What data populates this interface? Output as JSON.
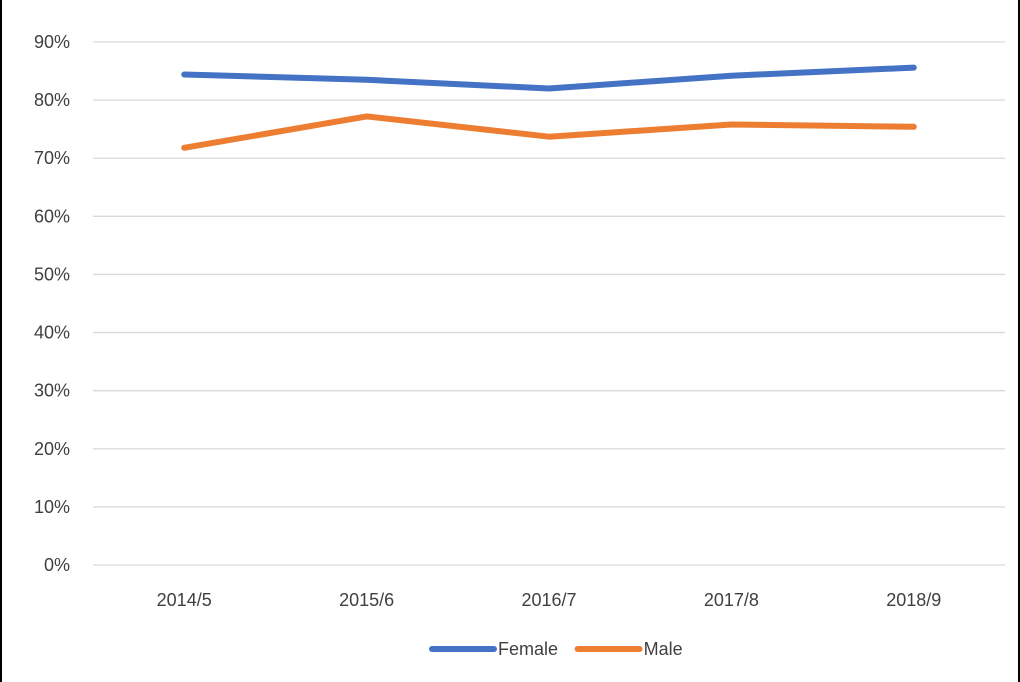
{
  "chart_data": {
    "type": "line",
    "categories": [
      "2014/5",
      "2015/6",
      "2016/7",
      "2017/8",
      "2018/9"
    ],
    "series": [
      {
        "name": "Female",
        "color": "#4472C4",
        "values": [
          0.844,
          0.835,
          0.82,
          0.842,
          0.856
        ]
      },
      {
        "name": "Male",
        "color": "#ED7D31",
        "values": [
          0.718,
          0.772,
          0.737,
          0.758,
          0.754
        ]
      }
    ],
    "y_ticks": [
      "0%",
      "10%",
      "20%",
      "30%",
      "40%",
      "50%",
      "60%",
      "70%",
      "80%",
      "90%"
    ],
    "ylim": [
      0,
      0.9
    ],
    "y_format": "percent",
    "grid": true,
    "legend_position": "bottom",
    "gridline_color": "#D9D9D9"
  }
}
